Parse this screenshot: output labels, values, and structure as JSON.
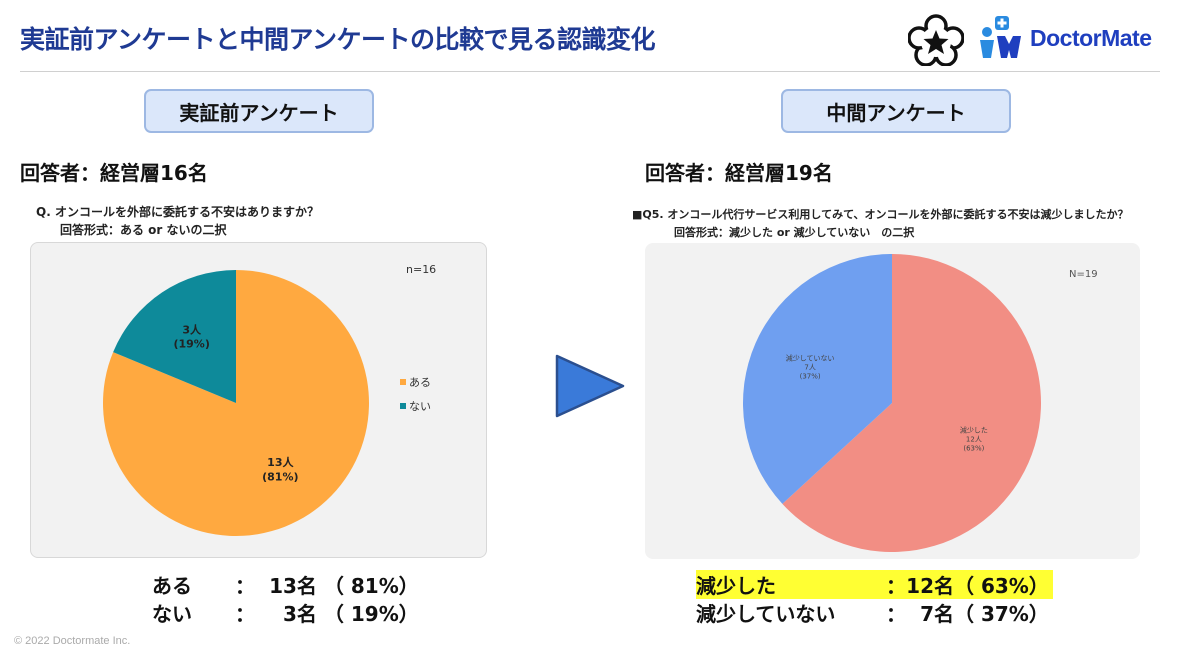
{
  "slide": {
    "title": "実証前アンケートと中間アンケートの比較で見る認識変化",
    "logo_text": "DoctorMate",
    "copyright": "© 2022 Doctormate Inc."
  },
  "left": {
    "heading": "実証前アンケート",
    "respondents": "回答者：経営層16名",
    "question": "Q.  オンコールを外部に委託する不安はありますか？",
    "answer_format": "回答形式：ある or ないの二択",
    "summary": [
      {
        "label": "ある",
        "sep": "：",
        "count": "13名",
        "pct": "（ 81%）"
      },
      {
        "label": "ない",
        "sep": "：",
        "count": "3名",
        "pct": "（ 19%）"
      }
    ]
  },
  "right": {
    "heading": "中間アンケート",
    "respondents": "回答者：経営層19名",
    "question": "■Q5.  オンコール代行サービス利用してみて、オンコールを外部に委託する不安は減少しましたか？",
    "answer_format": "回答形式：減少した or 減少していない　の二択",
    "summary": [
      {
        "label": "減少した",
        "sep": "：",
        "count": "12名",
        "pct": "（ 63%）"
      },
      {
        "label": "減少していない",
        "sep": "：",
        "count": "7名",
        "pct": "（ 37%）"
      }
    ]
  },
  "colors": {
    "title": "#1f3a93",
    "pie_left_yes": "#ffa940",
    "pie_left_no": "#0e8a9a",
    "pie_right_decreased": "#f28e84",
    "pie_right_not": "#6f9ff0",
    "arrow": "#3a7ad9",
    "highlight": "#ffff33"
  },
  "chart_data": [
    {
      "type": "pie",
      "n_label": "n=16",
      "slices": [
        {
          "name": "ある",
          "count": 13,
          "percent": 81,
          "label_line1": "13人",
          "label_line2": "(81%)"
        },
        {
          "name": "ない",
          "count": 3,
          "percent": 19,
          "label_line1": "3人",
          "label_line2": "(19%)"
        }
      ],
      "legend": [
        "ある",
        "ない"
      ],
      "legend_position": "right"
    },
    {
      "type": "pie",
      "n_label": "N=19",
      "slices": [
        {
          "name": "減少した",
          "count": 12,
          "percent": 63,
          "label_line1": "減少した",
          "label_line2": "12人",
          "label_line3": "(63%)"
        },
        {
          "name": "減少していない",
          "count": 7,
          "percent": 37,
          "label_line1": "減少していない",
          "label_line2": "7人",
          "label_line3": "(37%)"
        }
      ]
    }
  ]
}
